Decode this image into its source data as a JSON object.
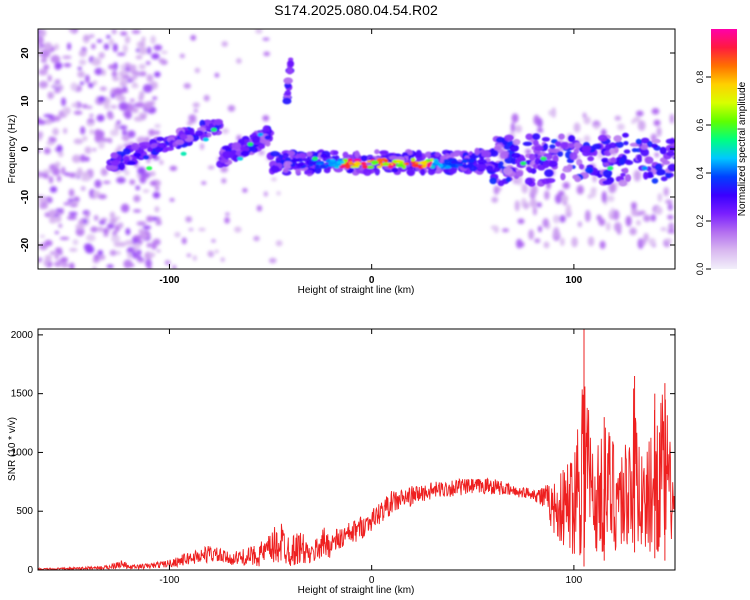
{
  "figure_title": "S174.2025.080.04.54.R02",
  "chart_data": [
    {
      "type": "heatmap",
      "title": "S174.2025.080.04.54.R02",
      "xlabel": "Height of straight line (km)",
      "ylabel": "Frequency (Hz)",
      "xlim": [
        -165,
        150
      ],
      "ylim": [
        -25,
        25
      ],
      "xticks": [
        -100,
        0,
        100
      ],
      "yticks": [
        -20,
        -10,
        0,
        10,
        20
      ],
      "colorbar": {
        "label": "Normalized spectral amplitude",
        "range": [
          0,
          1
        ],
        "ticks": [
          0.0,
          0.2,
          0.4,
          0.6,
          0.8
        ],
        "colormap": [
          "#f2f0fa",
          "#d9b8f0",
          "#b36ef0",
          "#7a1fff",
          "#3a00ff",
          "#0040ff",
          "#00c8ff",
          "#00ff80",
          "#60ff00",
          "#d8ff00",
          "#ffd000",
          "#ff7000",
          "#ff1a40",
          "#ff00aa"
        ]
      },
      "ridge_segments": [
        {
          "name": "rising branch",
          "x": [
            -130,
            -75
          ],
          "freq": [
            -3,
            5
          ]
        },
        {
          "name": "secondary branch",
          "x": [
            -75,
            -50
          ],
          "freq": [
            -2,
            3
          ]
        },
        {
          "name": "high-frequency blob",
          "x": [
            -42,
            -40
          ],
          "freq": [
            10,
            18
          ]
        },
        {
          "name": "main ridge",
          "x": [
            -50,
            150
          ],
          "freq": [
            -3,
            -2
          ]
        }
      ],
      "peak": {
        "x": [
          -15,
          30
        ],
        "freq": -3,
        "amplitude": 1.0
      }
    },
    {
      "type": "line",
      "xlabel": "Height of straight line (km)",
      "ylabel": "SNR (10 * v/v)",
      "xlim": [
        -165,
        150
      ],
      "ylim": [
        0,
        2050
      ],
      "xticks": [
        -100,
        0,
        100
      ],
      "yticks": [
        0,
        500,
        1000,
        1500,
        2000
      ],
      "series": [
        {
          "name": "SNR",
          "color": "#ee2020",
          "x": [
            -165,
            -150,
            -140,
            -130,
            -125,
            -120,
            -110,
            -100,
            -90,
            -80,
            -70,
            -60,
            -52,
            -45,
            -40,
            -35,
            -30,
            -25,
            -20,
            -15,
            -10,
            -5,
            0,
            5,
            10,
            20,
            30,
            40,
            50,
            60,
            70,
            80,
            85,
            90,
            95,
            100,
            105,
            110,
            115,
            120,
            125,
            130,
            135,
            140,
            145,
            150
          ],
          "values": [
            15,
            20,
            30,
            40,
            110,
            40,
            60,
            90,
            160,
            220,
            150,
            200,
            280,
            450,
            300,
            350,
            200,
            380,
            340,
            380,
            420,
            470,
            520,
            600,
            680,
            720,
            750,
            780,
            780,
            790,
            720,
            700,
            730,
            760,
            900,
            1100,
            2080,
            1000,
            1300,
            1200,
            1100,
            1650,
            900,
            1500,
            1590,
            700
          ],
          "envelope_lower": [
            0,
            2,
            4,
            5,
            10,
            5,
            10,
            20,
            40,
            60,
            40,
            30,
            20,
            30,
            20,
            40,
            30,
            80,
            100,
            160,
            200,
            260,
            330,
            400,
            470,
            540,
            600,
            620,
            640,
            640,
            620,
            600,
            500,
            300,
            150,
            100,
            30,
            100,
            80,
            120,
            100,
            150,
            120,
            100,
            80,
            300
          ]
        }
      ]
    }
  ]
}
